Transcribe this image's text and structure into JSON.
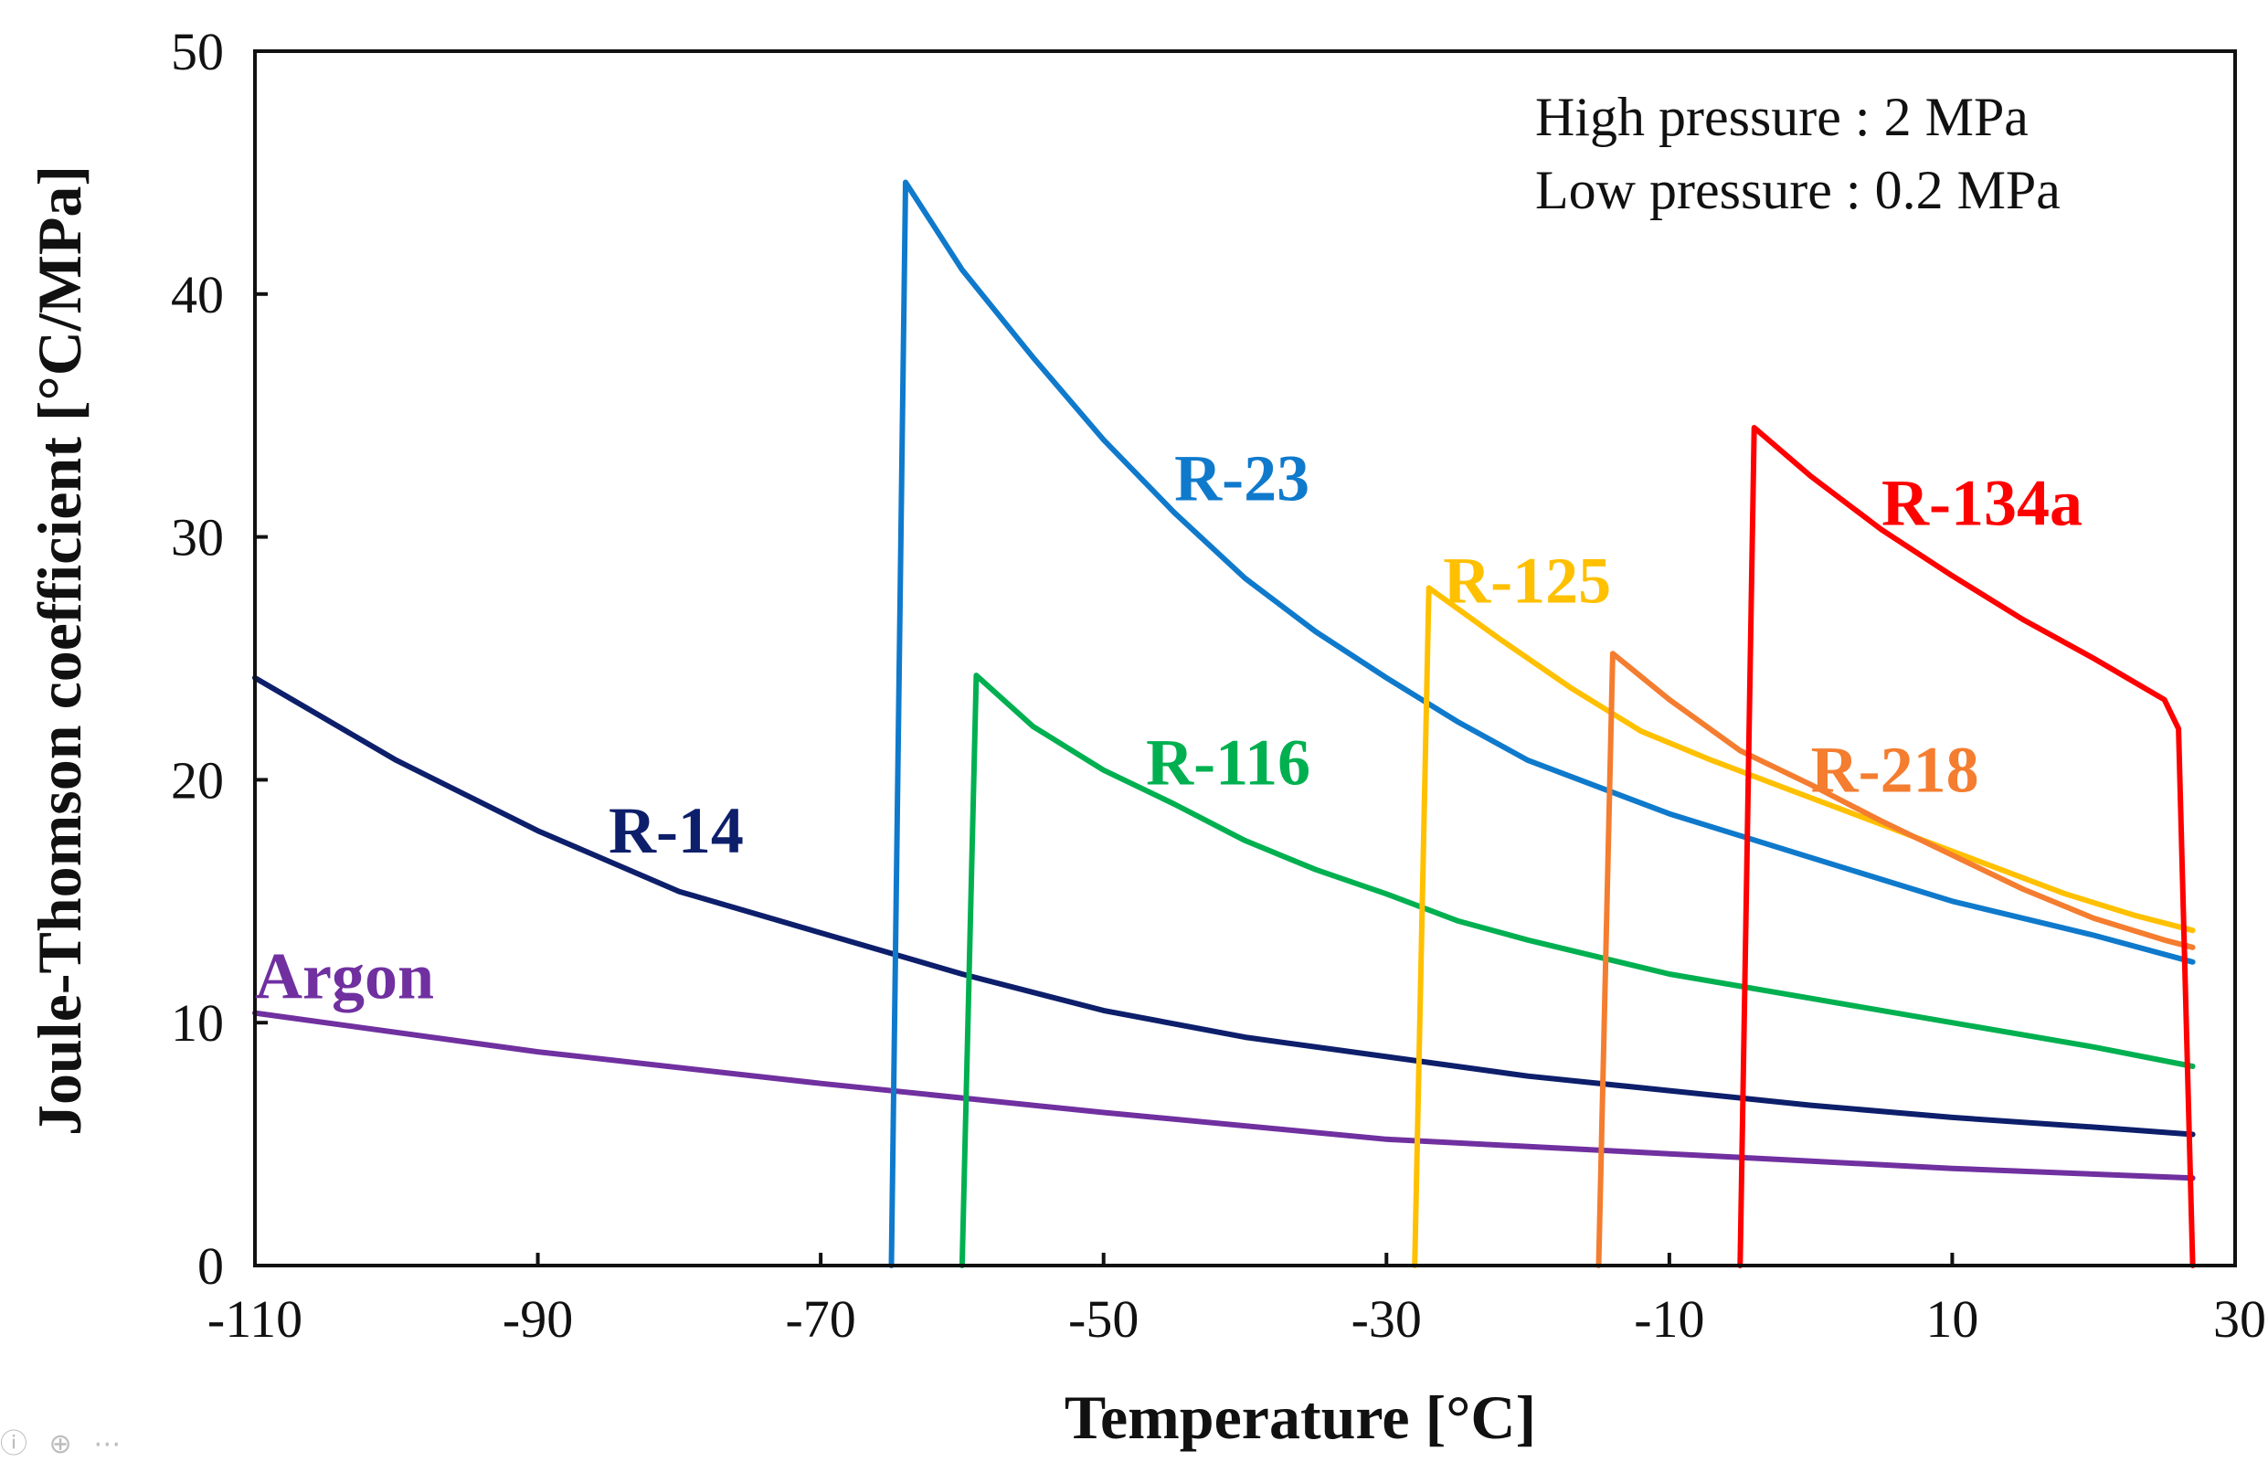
{
  "chart_data": {
    "type": "line",
    "title": "",
    "xlabel": "Temperature [°C]",
    "ylabel": "Joule-Thomson coefficient [°C/MPa]",
    "xlim": [
      -110,
      30
    ],
    "ylim": [
      0,
      50
    ],
    "x_ticks": [
      -110,
      -90,
      -70,
      -50,
      -30,
      -10,
      10,
      30
    ],
    "y_ticks": [
      0,
      10,
      20,
      30,
      40,
      50
    ],
    "x_tick_labels": [
      "-110",
      "-90",
      "-70",
      "-50",
      "-30",
      "-10",
      "10",
      "30"
    ],
    "y_tick_labels": [
      "0",
      "10",
      "20",
      "30",
      "40",
      "50"
    ],
    "annotations": [
      "High pressure : 2 MPa",
      "Low pressure : 0.2 MPa"
    ],
    "series": [
      {
        "name": "Argon",
        "color": "#7030a0",
        "label_at": [
          -110,
          11
        ],
        "points": [
          [
            -110,
            10.4
          ],
          [
            -90,
            8.8
          ],
          [
            -70,
            7.5
          ],
          [
            -50,
            6.3
          ],
          [
            -30,
            5.2
          ],
          [
            -10,
            4.6
          ],
          [
            10,
            4.0
          ],
          [
            27,
            3.6
          ]
        ]
      },
      {
        "name": "R-14",
        "color": "#0d1f6b",
        "label_at": [
          -85,
          17
        ],
        "points": [
          [
            -110,
            24.2
          ],
          [
            -100,
            20.8
          ],
          [
            -90,
            17.9
          ],
          [
            -80,
            15.4
          ],
          [
            -70,
            13.7
          ],
          [
            -60,
            12.0
          ],
          [
            -50,
            10.5
          ],
          [
            -40,
            9.4
          ],
          [
            -30,
            8.6
          ],
          [
            -20,
            7.8
          ],
          [
            -10,
            7.2
          ],
          [
            0,
            6.6
          ],
          [
            10,
            6.1
          ],
          [
            20,
            5.7
          ],
          [
            27,
            5.4
          ]
        ]
      },
      {
        "name": "R-23",
        "color": "#0f7acc",
        "label_at": [
          -45,
          31.5
        ],
        "points": [
          [
            -65,
            0
          ],
          [
            -64,
            44.6
          ],
          [
            -60,
            41.0
          ],
          [
            -55,
            37.4
          ],
          [
            -50,
            34.0
          ],
          [
            -45,
            31.0
          ],
          [
            -40,
            28.3
          ],
          [
            -35,
            26.1
          ],
          [
            -30,
            24.2
          ],
          [
            -25,
            22.4
          ],
          [
            -20,
            20.8
          ],
          [
            -10,
            18.6
          ],
          [
            0,
            16.8
          ],
          [
            10,
            15.0
          ],
          [
            20,
            13.6
          ],
          [
            27,
            12.5
          ]
        ]
      },
      {
        "name": "R-116",
        "color": "#00b050",
        "label_at": [
          -47,
          19.8
        ],
        "points": [
          [
            -60,
            0
          ],
          [
            -59,
            24.3
          ],
          [
            -55,
            22.2
          ],
          [
            -50,
            20.4
          ],
          [
            -45,
            19.0
          ],
          [
            -40,
            17.5
          ],
          [
            -35,
            16.3
          ],
          [
            -30,
            15.3
          ],
          [
            -25,
            14.2
          ],
          [
            -20,
            13.4
          ],
          [
            -10,
            12.0
          ],
          [
            0,
            11.0
          ],
          [
            10,
            10.0
          ],
          [
            20,
            9.0
          ],
          [
            27,
            8.2
          ]
        ]
      },
      {
        "name": "R-125",
        "color": "#ffc000",
        "label_at": [
          -26,
          27.3
        ],
        "points": [
          [
            -28,
            0
          ],
          [
            -27,
            27.9
          ],
          [
            -22,
            25.8
          ],
          [
            -17,
            23.8
          ],
          [
            -12,
            22.0
          ],
          [
            -7,
            20.8
          ],
          [
            -2,
            19.7
          ],
          [
            3,
            18.6
          ],
          [
            8,
            17.5
          ],
          [
            13,
            16.4
          ],
          [
            18,
            15.3
          ],
          [
            23,
            14.4
          ],
          [
            27,
            13.8
          ]
        ]
      },
      {
        "name": "R-218",
        "color": "#f47d30",
        "label_at": [
          0,
          19.5
        ],
        "points": [
          [
            -15,
            0
          ],
          [
            -14,
            25.2
          ],
          [
            -10,
            23.3
          ],
          [
            -5,
            21.2
          ],
          [
            0,
            19.8
          ],
          [
            5,
            18.3
          ],
          [
            10,
            16.9
          ],
          [
            15,
            15.5
          ],
          [
            20,
            14.3
          ],
          [
            25,
            13.4
          ],
          [
            27,
            13.1
          ]
        ]
      },
      {
        "name": "R-134a",
        "color": "#ff0000",
        "label_at": [
          5,
          30.5
        ],
        "points": [
          [
            -5,
            0
          ],
          [
            -4,
            34.5
          ],
          [
            0,
            32.5
          ],
          [
            5,
            30.3
          ],
          [
            10,
            28.4
          ],
          [
            15,
            26.6
          ],
          [
            20,
            25.0
          ],
          [
            25,
            23.3
          ],
          [
            26,
            22.1
          ],
          [
            27,
            0
          ]
        ]
      }
    ]
  },
  "footer_icons": [
    "info-icon",
    "zoom-icon",
    "more-icon"
  ]
}
